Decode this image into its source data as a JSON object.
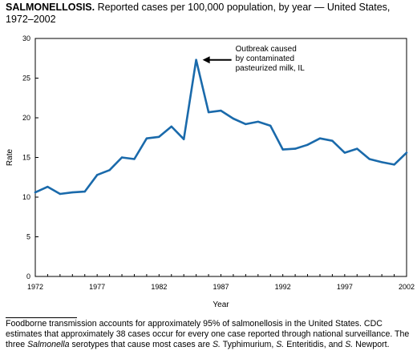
{
  "title": {
    "bold": "SALMONELLOSIS.",
    "rest": " Reported cases per 100,000 population, by year — United States, 1972–2002"
  },
  "footnote": {
    "part1": "Foodborne transmission accounts for approximately 95% of salmonellosis in the United States. CDC estimates that approximately 38 cases occur for every one case reported through national surveillance. The three ",
    "italic1": "Salmonella",
    "part2": " serotypes that cause most cases are ",
    "italic2": "S.",
    "part3": " Typhimurium, ",
    "italic3": "S.",
    "part4": " Enteritidis, and ",
    "italic4": "S.",
    "part5": " Newport."
  },
  "chart_data": {
    "type": "line",
    "title": "",
    "xlabel": "Year",
    "ylabel": "Rate",
    "xlim": [
      1972,
      2002
    ],
    "ylim": [
      0,
      30
    ],
    "xticks": [
      1972,
      1977,
      1982,
      1987,
      1992,
      1997,
      2002
    ],
    "yticks": [
      0,
      5,
      10,
      15,
      20,
      25,
      30
    ],
    "grid": false,
    "line_color": "#1a6aab",
    "x": [
      1972,
      1973,
      1974,
      1975,
      1976,
      1977,
      1978,
      1979,
      1980,
      1981,
      1982,
      1983,
      1984,
      1985,
      1986,
      1987,
      1988,
      1989,
      1990,
      1991,
      1992,
      1993,
      1994,
      1995,
      1996,
      1997,
      1998,
      1999,
      2000,
      2001,
      2002
    ],
    "values": [
      10.6,
      11.3,
      10.4,
      10.6,
      10.7,
      12.8,
      13.4,
      15.0,
      14.8,
      17.4,
      17.6,
      18.9,
      17.3,
      27.3,
      20.7,
      20.9,
      19.9,
      19.2,
      19.5,
      19.0,
      16.0,
      16.1,
      16.6,
      17.4,
      17.1,
      15.6,
      16.1,
      14.8,
      14.4,
      14.1,
      15.6
    ],
    "annotation": {
      "text_lines": [
        "Outbreak caused",
        "by contaminated",
        "pasteurized milk, IL"
      ],
      "x": 1985,
      "y": 27.3
    }
  }
}
